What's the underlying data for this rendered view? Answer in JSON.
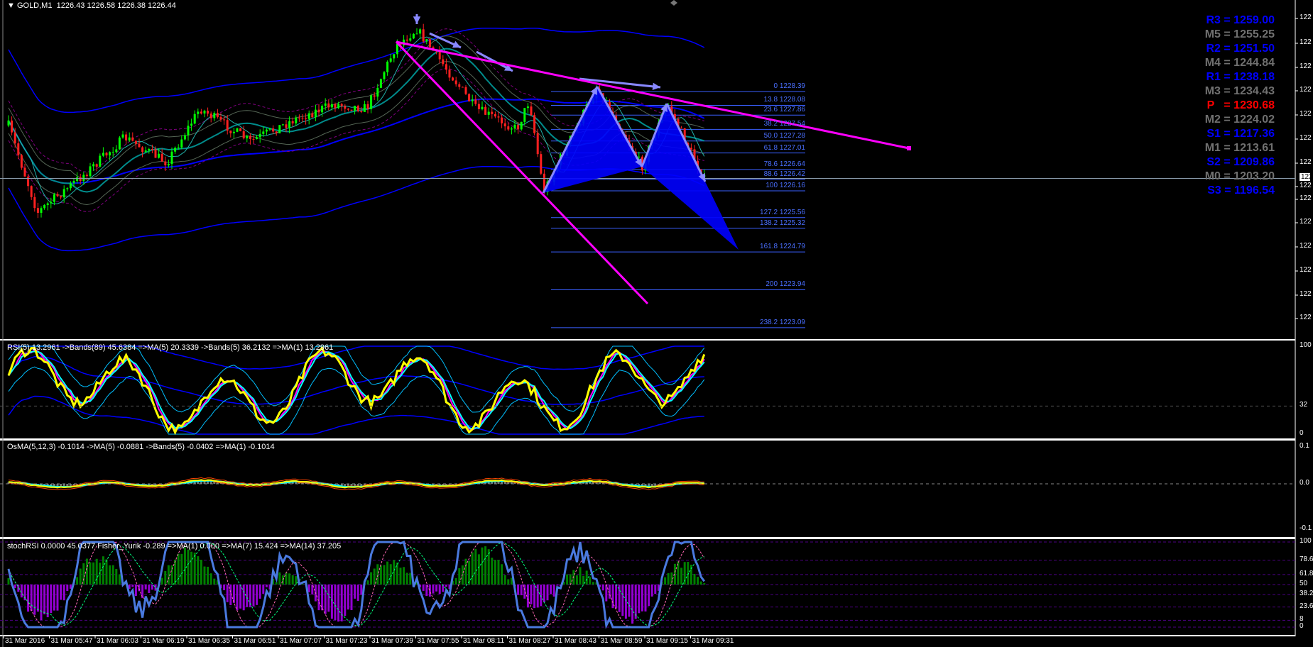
{
  "header": {
    "symbol": "GOLD,M1",
    "ohlc": "1226.43 1226.58 1226.38 1226.44"
  },
  "indicators": {
    "rsi": "RSI(5) 13.2961  ->Bands(89) 45.6384  =>MA(5) 20.3339  ->Bands(5) 36.2132  =>MA(1) 13.2961",
    "osma": "OsMA(5,12,3) -0.1014  ->MA(5) -0.0881  ->Bands(5) -0.0402  =>MA(1) -0.1014",
    "stoch": "stochRSI 0.0000 45.0377  Fisher_Yurik -0.289  =>MA(1) 0.000  =>MA(7) 15.424  =>MA(14) 37.205"
  },
  "pivots": [
    {
      "label": "R3 = 1259.00",
      "color": "#0000ff"
    },
    {
      "label": "M5 = 1255.25",
      "color": "#707070"
    },
    {
      "label": "R2 = 1251.50",
      "color": "#0000ff"
    },
    {
      "label": "M4 = 1244.84",
      "color": "#707070"
    },
    {
      "label": "R1 = 1238.18",
      "color": "#0000ff"
    },
    {
      "label": "M3 = 1234.43",
      "color": "#707070"
    },
    {
      "label": "P   = 1230.68",
      "color": "#ff0000"
    },
    {
      "label": "M2 = 1224.02",
      "color": "#707070"
    },
    {
      "label": "S1 = 1217.36",
      "color": "#0000ff"
    },
    {
      "label": "M1 = 1213.61",
      "color": "#707070"
    },
    {
      "label": "S2 = 1209.86",
      "color": "#0000ff"
    },
    {
      "label": "M0 = 1203.20",
      "color": "#707070"
    },
    {
      "label": "S3 = 1196.54",
      "color": "#0000ff"
    }
  ],
  "chart_data": {
    "type": "candlestick",
    "symbol": "GOLD",
    "timeframe": "M1",
    "last_price": 1226.44,
    "fib_levels": [
      {
        "label": "0 1228.39",
        "price": 1228.39
      },
      {
        "label": "13.8 1228.08",
        "price": 1228.08
      },
      {
        "label": "23.6 1227.86",
        "price": 1227.86
      },
      {
        "label": "38.2 1227.54",
        "price": 1227.54
      },
      {
        "label": "50.0 1227.28",
        "price": 1227.28
      },
      {
        "label": "61.8 1227.01",
        "price": 1227.01
      },
      {
        "label": "78.6 1226.64",
        "price": 1226.64
      },
      {
        "label": "88.6 1226.42",
        "price": 1226.42
      },
      {
        "label": "100 1226.16",
        "price": 1226.16
      },
      {
        "label": "127.2 1225.56",
        "price": 1225.56
      },
      {
        "label": "138.2 1225.32",
        "price": 1225.32
      },
      {
        "label": "161.8 1224.79",
        "price": 1224.79
      },
      {
        "label": "200 1223.94",
        "price": 1223.94
      },
      {
        "label": "238.2 1223.09",
        "price": 1223.09
      }
    ],
    "price_axis_labels": [
      "122",
      "122",
      "122",
      "122",
      "122",
      "122",
      "122",
      "122",
      "122",
      "122",
      "122",
      "122",
      "122",
      "122"
    ],
    "current_price_label": "122",
    "rsi_axis": [
      "100",
      "32",
      "0"
    ],
    "osma_axis": [
      "0.1",
      "0.0",
      "-0.1"
    ],
    "stoch_axis": [
      "100",
      "78.6",
      "61.8",
      "50",
      "38.2",
      "23.6",
      "8",
      "0"
    ],
    "time_labels": [
      "31 Mar 2016",
      "31 Mar 05:47",
      "31 Mar 06:03",
      "31 Mar 06:19",
      "31 Mar 06:35",
      "31 Mar 06:51",
      "31 Mar 07:07",
      "31 Mar 07:23",
      "31 Mar 07:39",
      "31 Mar 07:55",
      "31 Mar 08:11",
      "31 Mar 08:27",
      "31 Mar 08:43",
      "31 Mar 08:59",
      "31 Mar 09:15",
      "31 Mar 09:31"
    ],
    "colors": {
      "bull": "#00ff00",
      "bear": "#ff2020",
      "trendline": "#ff00ff",
      "pattern": "#0000ff",
      "pattern_arrow": "#8888ff",
      "fib": "#3a5fff"
    }
  }
}
